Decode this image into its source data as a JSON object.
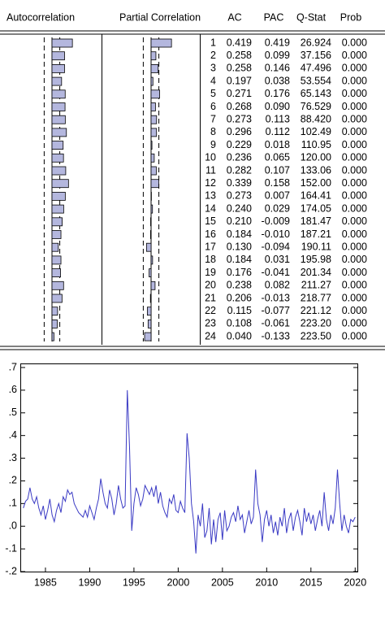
{
  "chart_data": [
    {
      "type": "correlogram",
      "bar_headers": [
        "Autocorrelation",
        "Partial Correlation"
      ],
      "categories": [
        1,
        2,
        3,
        4,
        5,
        6,
        7,
        8,
        9,
        10,
        11,
        12,
        13,
        14,
        15,
        16,
        17,
        18,
        19,
        20,
        21,
        22,
        23,
        24
      ],
      "confidence_bound": 0.16,
      "color": "#b4b7de",
      "series": [
        {
          "name": "AC",
          "values": [
            0.419,
            0.258,
            0.258,
            0.197,
            0.271,
            0.268,
            0.273,
            0.296,
            0.229,
            0.236,
            0.282,
            0.339,
            0.273,
            0.24,
            0.21,
            0.184,
            0.13,
            0.184,
            0.176,
            0.238,
            0.206,
            0.115,
            0.108,
            0.04
          ],
          "value_labels": [
            "0.419",
            "0.258",
            "0.258",
            "0.197",
            "0.271",
            "0.268",
            "0.273",
            "0.296",
            "0.229",
            "0.236",
            "0.282",
            "0.339",
            "0.273",
            "0.240",
            "0.210",
            "0.184",
            "0.130",
            "0.184",
            "0.176",
            "0.238",
            "0.206",
            "0.115",
            "0.108",
            "0.040"
          ]
        },
        {
          "name": "PAC",
          "values": [
            0.419,
            0.099,
            0.146,
            0.038,
            0.176,
            0.09,
            0.113,
            0.112,
            0.018,
            0.065,
            0.107,
            0.158,
            0.007,
            0.029,
            -0.009,
            -0.01,
            -0.094,
            0.031,
            -0.041,
            0.082,
            -0.013,
            -0.077,
            -0.061,
            -0.133
          ],
          "value_labels": [
            "0.419",
            "0.099",
            "0.146",
            "0.038",
            "0.176",
            "0.090",
            "0.113",
            "0.112",
            "0.018",
            "0.065",
            "0.107",
            "0.158",
            "0.007",
            "0.029",
            "-0.009",
            "-0.010",
            "-0.094",
            "0.031",
            "-0.041",
            "0.082",
            "-0.013",
            "-0.077",
            "-0.061",
            "-0.133"
          ]
        },
        {
          "name": "Q-Stat",
          "values": [
            26.924,
            37.156,
            47.496,
            53.554,
            65.143,
            76.529,
            88.42,
            102.49,
            110.95,
            120.0,
            133.06,
            152.0,
            164.41,
            174.05,
            181.47,
            187.21,
            190.11,
            195.98,
            201.34,
            211.27,
            218.77,
            221.12,
            223.2,
            223.5
          ],
          "value_labels": [
            "26.924",
            "37.156",
            "47.496",
            "53.554",
            "65.143",
            "76.529",
            "88.420",
            "102.49",
            "110.95",
            "120.00",
            "133.06",
            "152.00",
            "164.41",
            "174.05",
            "181.47",
            "187.21",
            "190.11",
            "195.98",
            "201.34",
            "211.27",
            "218.77",
            "221.12",
            "223.20",
            "223.50"
          ]
        },
        {
          "name": "Prob",
          "values": [
            0,
            0,
            0,
            0,
            0,
            0,
            0,
            0,
            0,
            0,
            0,
            0,
            0,
            0,
            0,
            0,
            0,
            0,
            0,
            0,
            0,
            0,
            0,
            0
          ],
          "value_labels": [
            "0.000",
            "0.000",
            "0.000",
            "0.000",
            "0.000",
            "0.000",
            "0.000",
            "0.000",
            "0.000",
            "0.000",
            "0.000",
            "0.000",
            "0.000",
            "0.000",
            "0.000",
            "0.000",
            "0.000",
            "0.000",
            "0.000",
            "0.000",
            "0.000",
            "0.000",
            "0.000",
            "0.000"
          ]
        }
      ]
    },
    {
      "type": "line",
      "x": [
        1982.5,
        1982.75,
        1983,
        1983.25,
        1983.5,
        1983.75,
        1984,
        1984.25,
        1984.5,
        1984.75,
        1985,
        1985.25,
        1985.5,
        1985.75,
        1986,
        1986.25,
        1986.5,
        1986.75,
        1987,
        1987.25,
        1987.5,
        1987.75,
        1988,
        1988.25,
        1988.5,
        1988.75,
        1989,
        1989.25,
        1989.5,
        1989.75,
        1990,
        1990.25,
        1990.5,
        1990.75,
        1991,
        1991.25,
        1991.5,
        1991.75,
        1992,
        1992.25,
        1992.5,
        1992.75,
        1993,
        1993.25,
        1993.5,
        1993.75,
        1994,
        1994.25,
        1994.5,
        1994.75,
        1995,
        1995.25,
        1995.5,
        1995.75,
        1996,
        1996.25,
        1996.5,
        1996.75,
        1997,
        1997.25,
        1997.5,
        1997.75,
        1998,
        1998.25,
        1998.5,
        1998.75,
        1999,
        1999.25,
        1999.5,
        1999.75,
        2000,
        2000.25,
        2000.5,
        2000.75,
        2001,
        2001.25,
        2001.5,
        2001.75,
        2002,
        2002.25,
        2002.5,
        2002.75,
        2003,
        2003.25,
        2003.5,
        2003.75,
        2004,
        2004.25,
        2004.5,
        2004.75,
        2005,
        2005.25,
        2005.5,
        2005.75,
        2006,
        2006.25,
        2006.5,
        2006.75,
        2007,
        2007.25,
        2007.5,
        2007.75,
        2008,
        2008.25,
        2008.5,
        2008.75,
        2009,
        2009.25,
        2009.5,
        2009.75,
        2010,
        2010.25,
        2010.5,
        2010.75,
        2011,
        2011.25,
        2011.5,
        2011.75,
        2012,
        2012.25,
        2012.5,
        2012.75,
        2013,
        2013.25,
        2013.5,
        2013.75,
        2014,
        2014.25,
        2014.5,
        2014.75,
        2015,
        2015.25,
        2015.5,
        2015.75,
        2016,
        2016.25,
        2016.5,
        2016.75,
        2017,
        2017.25,
        2017.5,
        2017.75,
        2018,
        2018.25,
        2018.5,
        2018.75,
        2019,
        2019.25,
        2019.5,
        2019.75,
        2020
      ],
      "series": [
        {
          "color": "#3a3ac4",
          "values": [
            0.08,
            0.11,
            0.12,
            0.17,
            0.12,
            0.1,
            0.13,
            0.08,
            0.05,
            0.09,
            0.03,
            0.07,
            0.12,
            0.05,
            0.02,
            0.07,
            0.1,
            0.06,
            0.13,
            0.11,
            0.16,
            0.14,
            0.15,
            0.1,
            0.08,
            0.06,
            0.05,
            0.04,
            0.07,
            0.04,
            0.09,
            0.06,
            0.03,
            0.08,
            0.12,
            0.21,
            0.15,
            0.1,
            0.08,
            0.16,
            0.12,
            0.05,
            0.1,
            0.18,
            0.12,
            0.08,
            0.09,
            0.6,
            0.35,
            -0.02,
            0.1,
            0.17,
            0.14,
            0.09,
            0.12,
            0.18,
            0.16,
            0.14,
            0.17,
            0.13,
            0.18,
            0.1,
            0.15,
            0.09,
            0.06,
            0.04,
            0.12,
            0.1,
            0.14,
            0.07,
            0.06,
            0.11,
            0.08,
            0.06,
            0.41,
            0.3,
            0.1,
            0.02,
            -0.12,
            0.05,
            0.0,
            0.1,
            -0.05,
            -0.02,
            0.08,
            -0.08,
            0.03,
            -0.07,
            0.03,
            0.06,
            -0.06,
            0.07,
            -0.02,
            0.0,
            0.04,
            0.06,
            0.02,
            0.09,
            0.03,
            0.05,
            -0.03,
            0.02,
            0.07,
            0.01,
            0.04,
            0.25,
            0.1,
            0.05,
            -0.07,
            0.03,
            0.07,
            0.0,
            0.05,
            -0.03,
            0.02,
            -0.04,
            0.04,
            0.0,
            0.08,
            -0.03,
            0.03,
            0.06,
            -0.02,
            0.04,
            0.07,
            0.02,
            -0.04,
            0.08,
            0.02,
            0.06,
            0.01,
            0.05,
            -0.02,
            0.03,
            0.07,
            0.0,
            0.15,
            0.03,
            -0.02,
            0.05,
            0.01,
            0.08,
            0.25,
            0.1,
            -0.02,
            0.05,
            0.0,
            -0.03,
            0.03,
            0.02,
            0.04
          ]
        }
      ],
      "xlim": [
        1982.25,
        2020.25
      ],
      "ylim": [
        -0.2,
        0.7
      ],
      "xticks": [
        1985,
        1990,
        1995,
        2000,
        2005,
        2010,
        2015,
        2020
      ],
      "yticks": [
        {
          "value": -0.2,
          "label": "-.2"
        },
        {
          "value": -0.1,
          "label": "-.1"
        },
        {
          "value": 0,
          "label": ".0"
        },
        {
          "value": 0.1,
          "label": ".1"
        },
        {
          "value": 0.2,
          "label": ".2"
        },
        {
          "value": 0.3,
          "label": ".3"
        },
        {
          "value": 0.4,
          "label": ".4"
        },
        {
          "value": 0.5,
          "label": ".5"
        },
        {
          "value": 0.6,
          "label": ".6"
        },
        {
          "value": 0.7,
          "label": ".7"
        }
      ]
    }
  ]
}
